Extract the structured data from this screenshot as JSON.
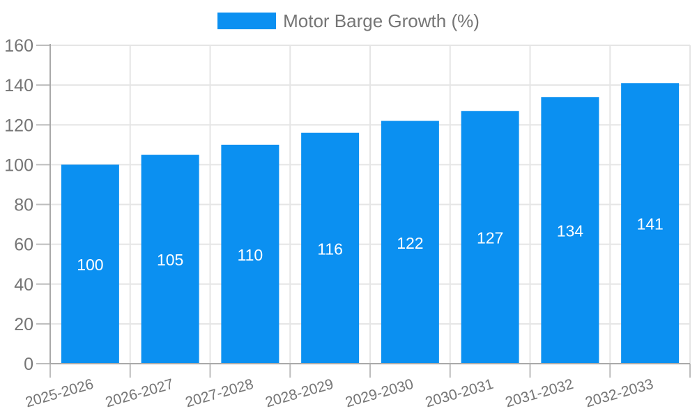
{
  "chart_data": {
    "type": "bar",
    "title": "",
    "legend": "Motor Barge Growth (%)",
    "legend_position": "top",
    "categories": [
      "2025-2026",
      "2026-2027",
      "2027-2028",
      "2028-2029",
      "2029-2030",
      "2030-2031",
      "2031-2032",
      "2032-2033"
    ],
    "series": [
      {
        "name": "Motor Barge Growth (%)",
        "values": [
          100,
          105,
          110,
          116,
          122,
          127,
          134,
          141
        ]
      }
    ],
    "bar_value_labels": [
      100,
      105,
      110,
      116,
      122,
      127,
      134,
      141
    ],
    "xlabel": "",
    "ylabel": "",
    "ylim": [
      0,
      160
    ],
    "yticks": [
      0,
      20,
      40,
      60,
      80,
      100,
      120,
      140,
      160
    ],
    "grid": true,
    "x_label_rotation": -16,
    "colors": {
      "bar": "#0b90f1",
      "grid": "#e5e5e5",
      "axis": "#a9a9a9",
      "tick": "#bdbdbd",
      "label": "#757575",
      "bar_label": "#ffffff",
      "background": "#ffffff"
    }
  }
}
